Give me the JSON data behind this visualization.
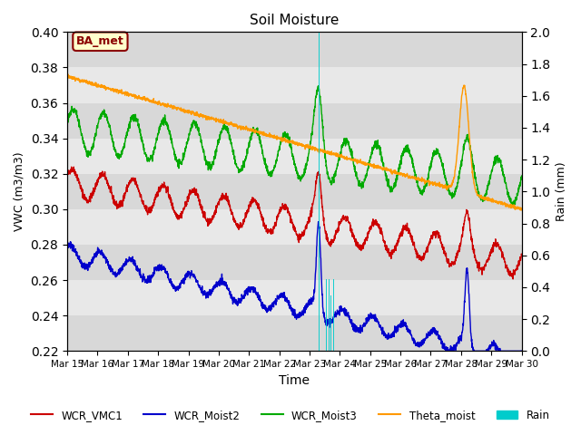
{
  "title": "Soil Moisture",
  "xlabel": "Time",
  "ylabel_left": "VWC (m3/m3)",
  "ylabel_right": "Rain (mm)",
  "ylim_left": [
    0.22,
    0.4
  ],
  "ylim_right": [
    0.0,
    2.0
  ],
  "yticks_left": [
    0.22,
    0.24,
    0.26,
    0.28,
    0.3,
    0.32,
    0.34,
    0.36,
    0.38,
    0.4
  ],
  "yticks_right": [
    0.0,
    0.2,
    0.4,
    0.6,
    0.8,
    1.0,
    1.2,
    1.4,
    1.6,
    1.8,
    2.0
  ],
  "n_days": 15,
  "xtick_labels": [
    "Mar 15",
    "Mar 16",
    "Mar 17",
    "Mar 18",
    "Mar 19",
    "Mar 20",
    "Mar 21",
    "Mar 22",
    "Mar 23",
    "Mar 24",
    "Mar 25",
    "Mar 26",
    "Mar 27",
    "Mar 28",
    "Mar 29",
    "Mar 30"
  ],
  "colors": {
    "WCR_VMC1": "#cc0000",
    "WCR_Moist2": "#0000cc",
    "WCR_Moist3": "#00aa00",
    "Theta_moist": "#ff9900",
    "Rain": "#00cccc",
    "plot_bg": "#eeeeee"
  },
  "legend_labels": [
    "WCR_VMC1",
    "WCR_Moist2",
    "WCR_Moist3",
    "Theta_moist",
    "Rain"
  ],
  "annotation_text": "BA_met",
  "annotation_color": "#8b0000",
  "annotation_bg": "#ffffcc",
  "band_colors": [
    "#d8d8d8",
    "#e8e8e8"
  ]
}
